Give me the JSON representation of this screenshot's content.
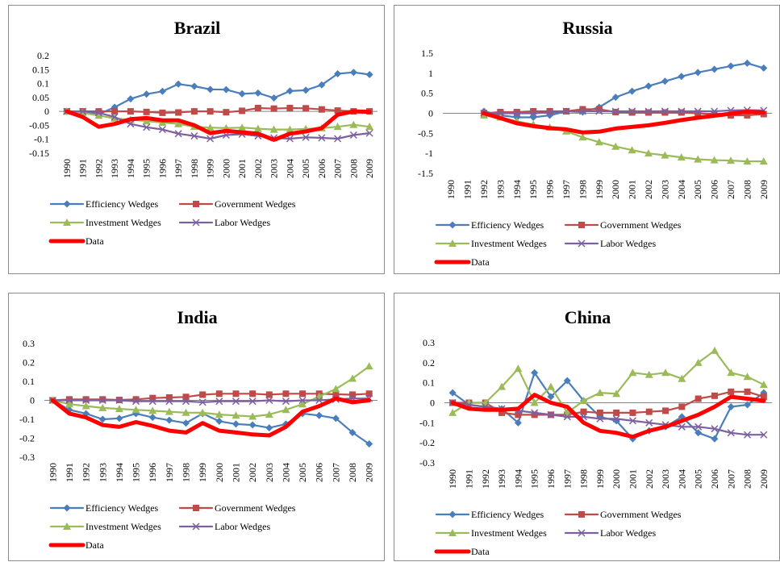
{
  "chart_data": [
    {
      "type": "line",
      "title": "Brazil",
      "categories": [
        "1990",
        "1991",
        "1992",
        "1993",
        "1994",
        "1995",
        "1996",
        "1997",
        "1998",
        "1999",
        "2000",
        "2001",
        "2002",
        "2003",
        "2004",
        "2005",
        "2006",
        "2007",
        "2008",
        "2009"
      ],
      "yticks": [
        "0.2",
        "0.15",
        "0.1",
        "0.05",
        "0",
        "-0.05",
        "-0.1",
        "-0.15"
      ],
      "ylim": [
        -0.15,
        0.2
      ],
      "legend_position": "bottom",
      "series": [
        {
          "name": "Efficiency Wedges",
          "color": "#4a7ebb",
          "marker": "diamond",
          "values": [
            0,
            0,
            -0.01,
            0.015,
            0.045,
            0.062,
            0.072,
            0.098,
            0.09,
            0.079,
            0.078,
            0.063,
            0.066,
            0.048,
            0.073,
            0.076,
            0.095,
            0.135,
            0.14,
            0.132
          ]
        },
        {
          "name": "Government Wedges",
          "color": "#be4b48",
          "marker": "square",
          "values": [
            0,
            0,
            0,
            0,
            0,
            -0.002,
            -0.005,
            -0.004,
            0,
            0,
            -0.003,
            0.002,
            0.012,
            0.01,
            0.012,
            0.011,
            0.007,
            0.003,
            0,
            0
          ]
        },
        {
          "name": "Investment Wedges",
          "color": "#9bbb59",
          "marker": "triangle",
          "values": [
            0,
            -0.005,
            -0.015,
            -0.025,
            -0.03,
            -0.035,
            -0.04,
            -0.045,
            -0.055,
            -0.058,
            -0.06,
            -0.058,
            -0.062,
            -0.065,
            -0.065,
            -0.063,
            -0.06,
            -0.055,
            -0.048,
            -0.055
          ]
        },
        {
          "name": "Labor Wedges",
          "color": "#7d60a0",
          "marker": "x",
          "values": [
            0,
            0,
            -0.005,
            -0.02,
            -0.045,
            -0.057,
            -0.065,
            -0.08,
            -0.088,
            -0.098,
            -0.085,
            -0.082,
            -0.088,
            -0.095,
            -0.098,
            -0.093,
            -0.095,
            -0.098,
            -0.085,
            -0.078
          ]
        },
        {
          "name": "Data",
          "color": "#ff0000",
          "marker": "none",
          "width": 5,
          "values": [
            0,
            -0.02,
            -0.055,
            -0.045,
            -0.028,
            -0.024,
            -0.032,
            -0.032,
            -0.05,
            -0.078,
            -0.07,
            -0.075,
            -0.08,
            -0.102,
            -0.08,
            -0.072,
            -0.06,
            -0.012,
            0,
            -0.002
          ]
        }
      ]
    },
    {
      "type": "line",
      "title": "Russia",
      "categories": [
        "1990",
        "1991",
        "1992",
        "1993",
        "1994",
        "1995",
        "1996",
        "1997",
        "1998",
        "1999",
        "2000",
        "2001",
        "2002",
        "2003",
        "2004",
        "2005",
        "2006",
        "2007",
        "2008",
        "2009"
      ],
      "yticks": [
        "1.5",
        "1",
        "0.5",
        "0",
        "-0.5",
        "-1",
        "-1.5"
      ],
      "ylim": [
        -1.5,
        1.5
      ],
      "legend_position": "bottom",
      "series": [
        {
          "name": "Efficiency Wedges",
          "color": "#4a7ebb",
          "marker": "diamond",
          "values": [
            null,
            null,
            0.05,
            -0.05,
            -0.1,
            -0.1,
            -0.05,
            0.05,
            0.03,
            0.15,
            0.4,
            0.55,
            0.68,
            0.8,
            0.92,
            1.02,
            1.1,
            1.18,
            1.25,
            1.13
          ]
        },
        {
          "name": "Government Wedges",
          "color": "#be4b48",
          "marker": "square",
          "values": [
            null,
            null,
            0,
            0.03,
            0.03,
            0.05,
            0.05,
            0.05,
            0.1,
            0.1,
            0.03,
            0.02,
            0.02,
            0.02,
            0.02,
            0.0,
            -0.02,
            -0.05,
            -0.05,
            -0.02
          ]
        },
        {
          "name": "Investment Wedges",
          "color": "#9bbb59",
          "marker": "triangle",
          "values": [
            null,
            null,
            -0.05,
            -0.1,
            -0.2,
            -0.28,
            -0.35,
            -0.45,
            -0.6,
            -0.72,
            -0.83,
            -0.92,
            -1.0,
            -1.05,
            -1.1,
            -1.15,
            -1.17,
            -1.18,
            -1.2,
            -1.2
          ]
        },
        {
          "name": "Labor Wedges",
          "color": "#7d60a0",
          "marker": "x",
          "values": [
            null,
            null,
            0,
            0,
            0,
            0,
            0.02,
            0.05,
            0.05,
            0.05,
            0.05,
            0.05,
            0.05,
            0.05,
            0.05,
            0.05,
            0.05,
            0.07,
            0.08,
            0.07
          ]
        },
        {
          "name": "Data",
          "color": "#ff0000",
          "marker": "none",
          "width": 5,
          "values": [
            null,
            null,
            0,
            -0.12,
            -0.25,
            -0.32,
            -0.37,
            -0.4,
            -0.48,
            -0.46,
            -0.38,
            -0.34,
            -0.3,
            -0.24,
            -0.17,
            -0.11,
            -0.06,
            -0.01,
            0.04,
            0.02
          ]
        }
      ]
    },
    {
      "type": "line",
      "title": "India",
      "categories": [
        "1990",
        "1991",
        "1992",
        "1993",
        "1994",
        "1995",
        "1996",
        "1997",
        "1998",
        "1999",
        "2000",
        "2001",
        "2002",
        "2003",
        "2004",
        "2005",
        "2006",
        "2007",
        "2008",
        "2009"
      ],
      "yticks": [
        "0.3",
        "0.2",
        "0.1",
        "0",
        "-0.1",
        "-0.2",
        "-0.3"
      ],
      "ylim": [
        -0.3,
        0.3
      ],
      "legend_position": "bottom",
      "series": [
        {
          "name": "Efficiency Wedges",
          "color": "#4a7ebb",
          "marker": "diamond",
          "values": [
            0,
            -0.05,
            -0.07,
            -0.1,
            -0.095,
            -0.07,
            -0.09,
            -0.105,
            -0.12,
            -0.07,
            -0.11,
            -0.125,
            -0.13,
            -0.145,
            -0.125,
            -0.07,
            -0.08,
            -0.095,
            -0.17,
            -0.23
          ]
        },
        {
          "name": "Government Wedges",
          "color": "#be4b48",
          "marker": "square",
          "values": [
            0,
            0.005,
            0.005,
            0.005,
            0.002,
            0.005,
            0.012,
            0.015,
            0.018,
            0.03,
            0.035,
            0.035,
            0.035,
            0.03,
            0.035,
            0.035,
            0.035,
            0.032,
            0.03,
            0.035
          ]
        },
        {
          "name": "Investment Wedges",
          "color": "#9bbb59",
          "marker": "triangle",
          "values": [
            0,
            -0.02,
            -0.03,
            -0.04,
            -0.045,
            -0.05,
            -0.055,
            -0.06,
            -0.065,
            -0.065,
            -0.075,
            -0.08,
            -0.085,
            -0.075,
            -0.05,
            -0.02,
            0.02,
            0.06,
            0.115,
            0.18
          ]
        },
        {
          "name": "Labor Wedges",
          "color": "#7d60a0",
          "marker": "x",
          "values": [
            0,
            0,
            0,
            0,
            0,
            -0.005,
            -0.005,
            -0.005,
            -0.005,
            -0.01,
            -0.005,
            -0.005,
            -0.005,
            0,
            -0.005,
            0,
            0,
            0.005,
            0.01,
            0.01
          ]
        },
        {
          "name": "Data",
          "color": "#ff0000",
          "marker": "none",
          "width": 5,
          "values": [
            0,
            -0.07,
            -0.09,
            -0.13,
            -0.14,
            -0.115,
            -0.135,
            -0.16,
            -0.17,
            -0.12,
            -0.16,
            -0.17,
            -0.18,
            -0.185,
            -0.14,
            -0.06,
            -0.03,
            0.01,
            -0.01,
            0
          ]
        }
      ]
    },
    {
      "type": "line",
      "title": "China",
      "categories": [
        "1990",
        "1991",
        "1992",
        "1993",
        "1994",
        "1995",
        "1996",
        "1997",
        "1998",
        "1999",
        "2000",
        "2001",
        "2002",
        "2003",
        "2004",
        "2005",
        "2006",
        "2007",
        "2008",
        "2009"
      ],
      "yticks": [
        "0.3",
        "0.2",
        "0.1",
        "0",
        "-0.1",
        "-0.2",
        "-0.3"
      ],
      "ylim": [
        -0.3,
        0.3
      ],
      "legend_position": "bottom",
      "series": [
        {
          "name": "Efficiency Wedges",
          "color": "#4a7ebb",
          "marker": "diamond",
          "values": [
            0.05,
            -0.01,
            -0.02,
            -0.03,
            -0.1,
            0.15,
            0.03,
            0.11,
            0.01,
            -0.07,
            -0.09,
            -0.18,
            -0.14,
            -0.12,
            -0.07,
            -0.15,
            -0.18,
            -0.02,
            -0.01,
            0.05
          ]
        },
        {
          "name": "Government Wedges",
          "color": "#be4b48",
          "marker": "square",
          "values": [
            0,
            0,
            0,
            -0.05,
            -0.06,
            -0.06,
            -0.06,
            -0.06,
            -0.045,
            -0.05,
            -0.05,
            -0.05,
            -0.045,
            -0.04,
            -0.02,
            0.02,
            0.035,
            0.055,
            0.055,
            0.03
          ]
        },
        {
          "name": "Investment Wedges",
          "color": "#9bbb59",
          "marker": "triangle",
          "values": [
            -0.05,
            0,
            0,
            0.08,
            0.17,
            0,
            0.08,
            -0.05,
            0.01,
            0.05,
            0.045,
            0.15,
            0.14,
            0.15,
            0.12,
            0.2,
            0.26,
            0.15,
            0.13,
            0.09
          ]
        },
        {
          "name": "Labor Wedges",
          "color": "#7d60a0",
          "marker": "x",
          "values": [
            0,
            -0.01,
            -0.02,
            -0.03,
            -0.04,
            -0.05,
            -0.06,
            -0.07,
            -0.07,
            -0.08,
            -0.08,
            -0.09,
            -0.1,
            -0.11,
            -0.12,
            -0.12,
            -0.13,
            -0.15,
            -0.16,
            -0.16
          ]
        },
        {
          "name": "Data",
          "color": "#ff0000",
          "marker": "none",
          "width": 5,
          "values": [
            0,
            -0.03,
            -0.035,
            -0.035,
            -0.03,
            0.04,
            0,
            -0.02,
            -0.1,
            -0.14,
            -0.15,
            -0.17,
            -0.14,
            -0.12,
            -0.09,
            -0.06,
            -0.02,
            0.03,
            0.02,
            0.01
          ]
        }
      ]
    }
  ]
}
